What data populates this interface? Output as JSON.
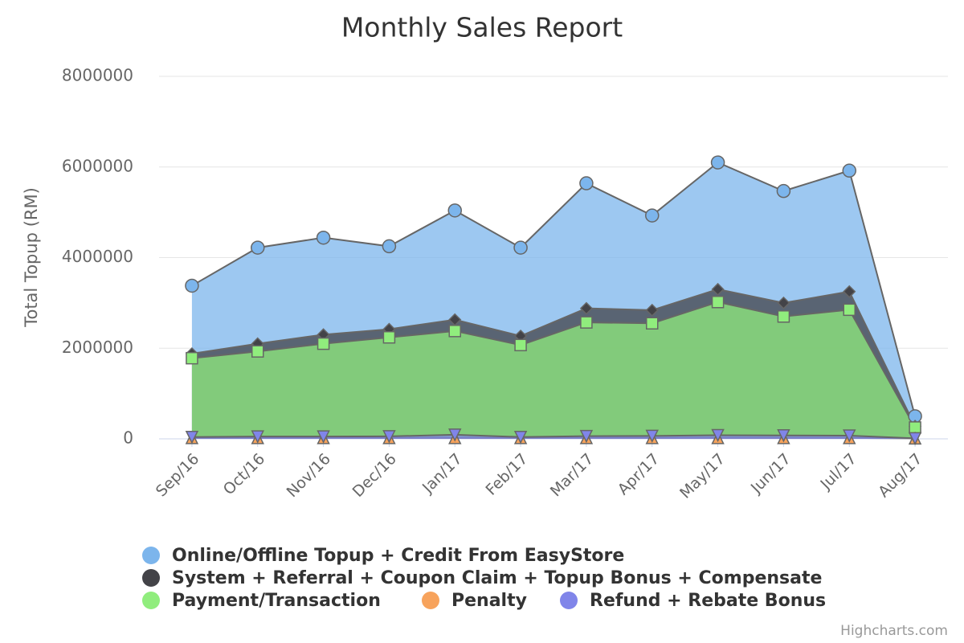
{
  "chart_data": {
    "type": "area",
    "title": "Monthly Sales Report",
    "y_label": "Total Topup (RM)",
    "credits": "Highcharts.com",
    "categories": [
      "Sep/16",
      "Oct/16",
      "Nov/16",
      "Dec/16",
      "Jan/17",
      "Feb/17",
      "Mar/17",
      "Apr/17",
      "May/17",
      "Jun/17",
      "Jul/17",
      "Aug/17"
    ],
    "ylim": [
      0,
      8000000
    ],
    "yticks": [
      0,
      2000000,
      4000000,
      6000000,
      8000000
    ],
    "grid": true,
    "stacked": false,
    "series": [
      {
        "name": "Online/Offline Topup + Credit From EasyStore",
        "color": "#7cb5ec",
        "marker": "circle",
        "values": [
          3380000,
          4220000,
          4440000,
          4250000,
          5040000,
          4220000,
          5640000,
          4930000,
          6100000,
          5470000,
          5920000,
          500000
        ]
      },
      {
        "name": "System + Referral + Coupon Claim + Topup Bonus + Compensate",
        "color": "#434348",
        "marker": "diamond",
        "values": [
          1880000,
          2100000,
          2300000,
          2420000,
          2630000,
          2270000,
          2880000,
          2840000,
          3300000,
          3000000,
          3250000,
          280000
        ]
      },
      {
        "name": "Payment/Transaction",
        "color": "#90ed7d",
        "marker": "square",
        "values": [
          1780000,
          1930000,
          2100000,
          2240000,
          2380000,
          2070000,
          2570000,
          2550000,
          3020000,
          2700000,
          2850000,
          250000
        ]
      },
      {
        "name": "Penalty",
        "color": "#f7a35c",
        "marker": "triangle",
        "values": [
          20000,
          20000,
          20000,
          20000,
          20000,
          20000,
          20000,
          20000,
          20000,
          20000,
          20000,
          10000
        ]
      },
      {
        "name": "Refund + Rebate Bonus",
        "color": "#8085e9",
        "marker": "triangle-down",
        "values": [
          40000,
          50000,
          50000,
          55000,
          90000,
          40000,
          60000,
          65000,
          80000,
          75000,
          70000,
          10000
        ]
      }
    ]
  }
}
